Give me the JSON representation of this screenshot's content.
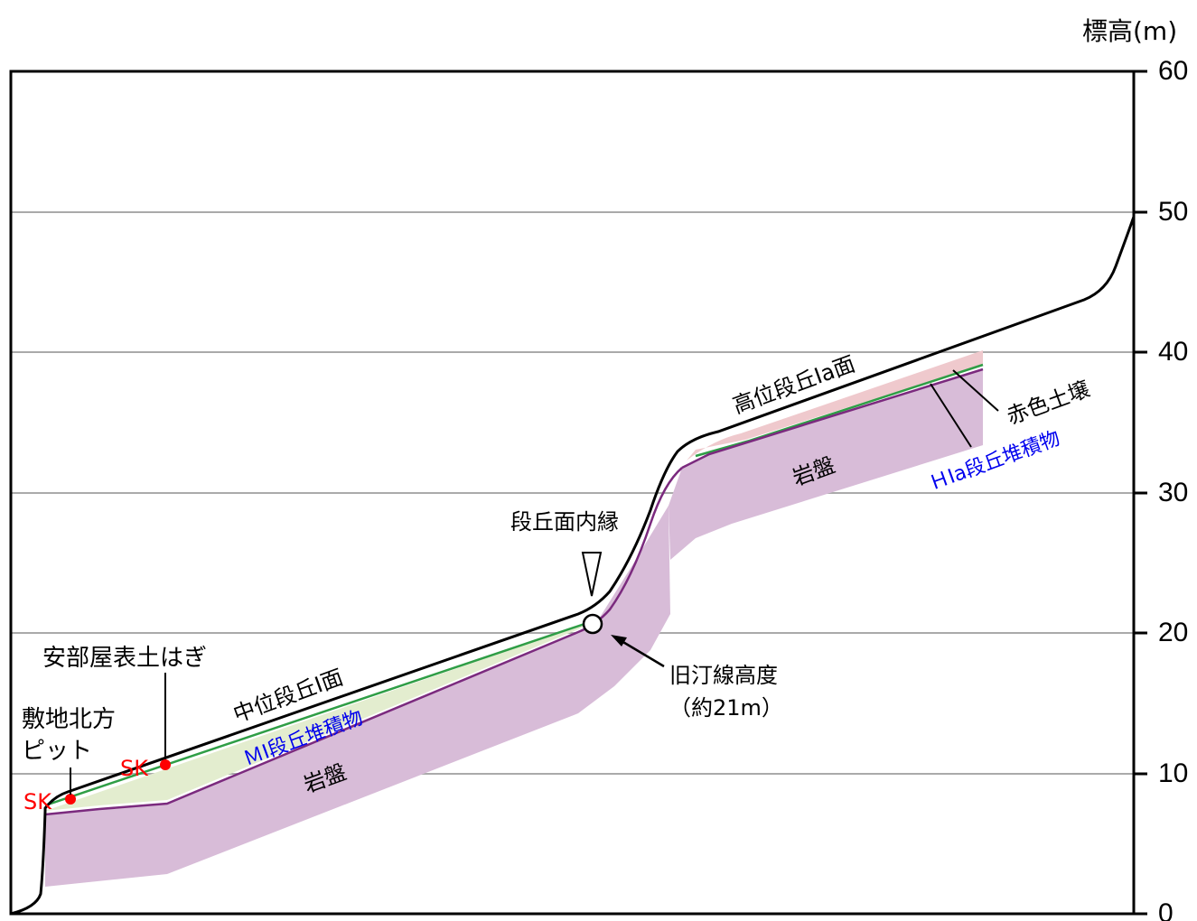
{
  "axis": {
    "label": "標高(m)",
    "ticks": [
      "0",
      "10",
      "20",
      "30",
      "40",
      "50",
      "60"
    ],
    "range": [
      0,
      60
    ],
    "gridlines": true
  },
  "labels": {
    "pit": "敷地北方\nピット",
    "abeya": "安部屋表土はぎ",
    "sk": "SK",
    "middle_terrace": "中位段丘Ⅰ面",
    "mi_deposit": "ＭⅠ段丘堆積物",
    "bedrock": "岩盤",
    "inner_edge": "段丘面内縁",
    "shoreline": "旧汀線高度\n（約21m）",
    "high_terrace": "高位段丘Ⅰa面",
    "red_soil": "赤色土壌",
    "hia_deposit": "ＨⅠa段丘堆積物"
  },
  "features": {
    "shoreline_elevation_m": 21
  },
  "colors": {
    "bedrock": "#d8bcd8",
    "bedrock_line": "#7b2a7e",
    "mi_deposit": "#e3edcf",
    "deposit_top": "#2f9e46",
    "red_soil": "#efc9cd",
    "ground": "#000000",
    "sk_point": "#ff0000",
    "blue_text": "#0000ee",
    "grid": "#aaaaaa"
  }
}
